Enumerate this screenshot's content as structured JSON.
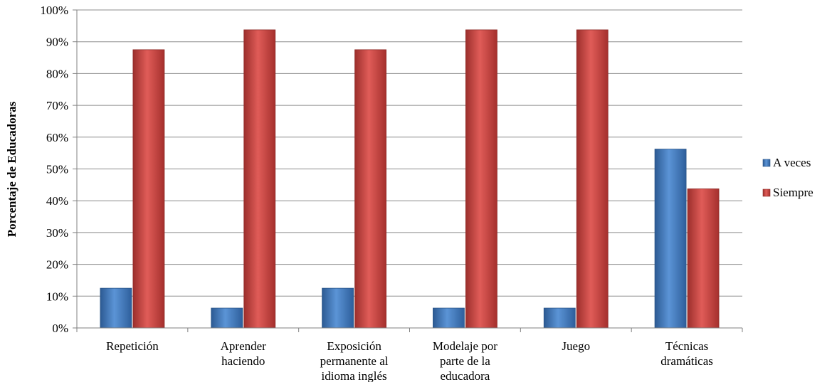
{
  "chart_data": {
    "type": "bar",
    "title": "",
    "xlabel": "",
    "ylabel": "Porcentaje de Educadoras",
    "ylim": [
      0,
      100
    ],
    "y_ticks": [
      "0%",
      "10%",
      "20%",
      "30%",
      "40%",
      "50%",
      "60%",
      "70%",
      "80%",
      "90%",
      "100%"
    ],
    "grid": true,
    "legend_position": "right",
    "categories": [
      [
        "Repetición"
      ],
      [
        "Aprender",
        "haciendo"
      ],
      [
        "Exposición",
        "permanente al",
        "idioma inglés"
      ],
      [
        "Modelaje por",
        "parte de la",
        "educadora"
      ],
      [
        "Juego"
      ],
      [
        "Técnicas",
        "dramáticas"
      ]
    ],
    "series": [
      {
        "name": "A veces",
        "color": "#4a7ebb",
        "values": [
          12.5,
          6.25,
          12.5,
          6.25,
          6.25,
          56.25
        ]
      },
      {
        "name": "Siempre",
        "color": "#be4b48",
        "values": [
          87.5,
          93.75,
          87.5,
          93.75,
          93.75,
          43.75
        ]
      }
    ]
  }
}
